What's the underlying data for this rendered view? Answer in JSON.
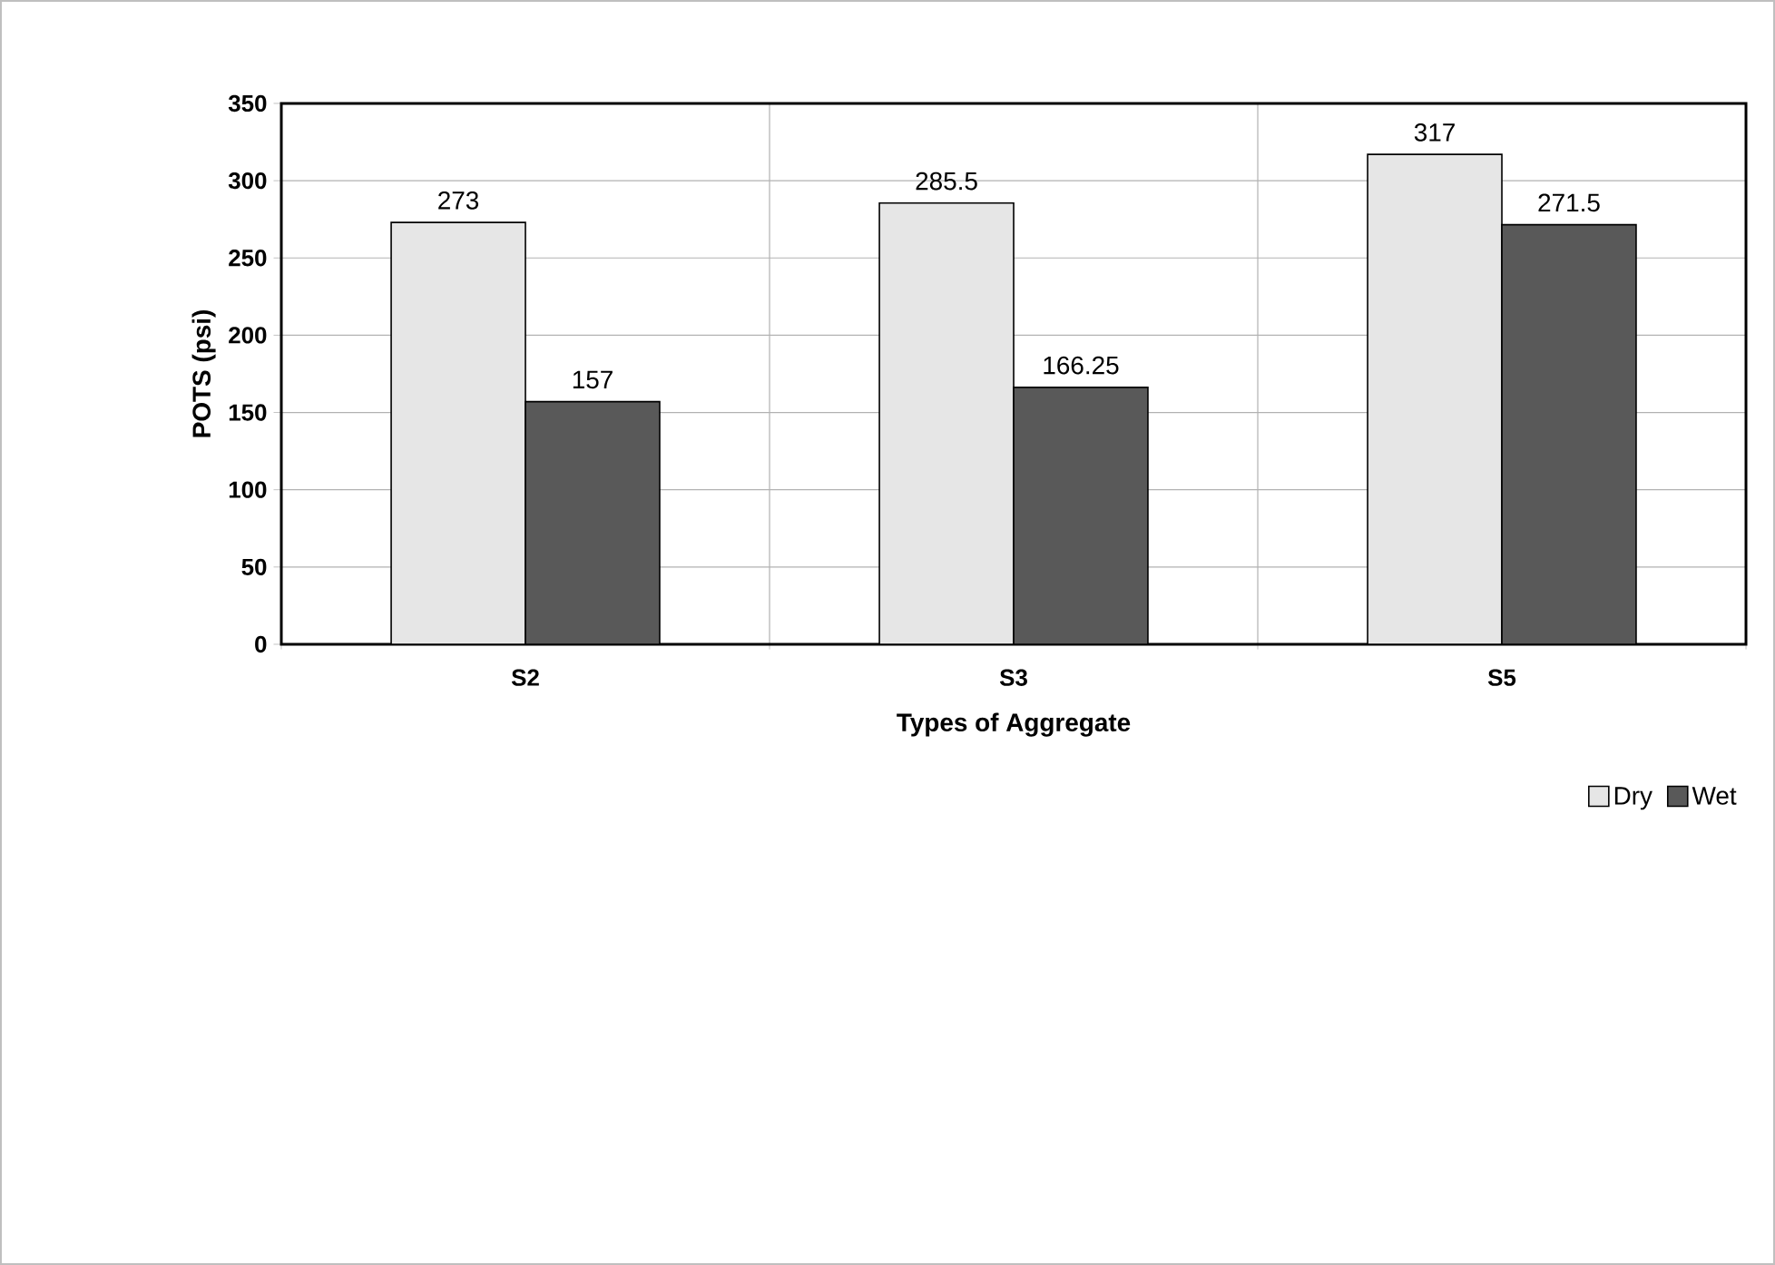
{
  "chart_data": {
    "type": "bar",
    "categories": [
      "S2",
      "S3",
      "S5"
    ],
    "series": [
      {
        "name": "Dry",
        "color": "#e6e6e6",
        "values": [
          273,
          285.5,
          317
        ]
      },
      {
        "name": "Wet",
        "color": "#595959",
        "values": [
          157,
          166.25,
          271.5
        ]
      }
    ],
    "xlabel": "Types of Aggregate",
    "ylabel": "POTS (psi)",
    "ylim": [
      0,
      350
    ],
    "yticks": [
      0,
      50,
      100,
      150,
      200,
      250,
      300,
      350
    ],
    "grid": true,
    "legend": "bottom right",
    "data_labels": true
  }
}
